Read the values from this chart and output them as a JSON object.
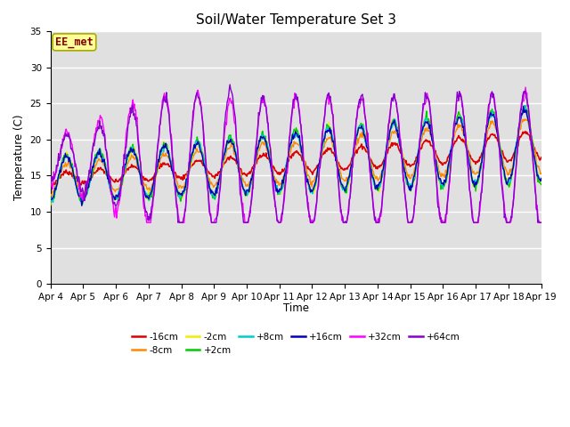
{
  "title": "Soil/Water Temperature Set 3",
  "xlabel": "Time",
  "ylabel": "Temperature (C)",
  "ylim": [
    0,
    35
  ],
  "yticks": [
    0,
    5,
    10,
    15,
    20,
    25,
    30,
    35
  ],
  "x_labels": [
    "Apr 4",
    "Apr 5",
    "Apr 6",
    "Apr 7",
    "Apr 8",
    "Apr 9",
    "Apr 10",
    "Apr 11",
    "Apr 12",
    "Apr 13",
    "Apr 14",
    "Apr 15",
    "Apr 16",
    "Apr 17",
    "Apr 18",
    "Apr 19"
  ],
  "annotation_text": "EE_met",
  "legend_entries": [
    {
      "label": "-16cm",
      "color": "#dd0000"
    },
    {
      "label": "-8cm",
      "color": "#ff8800"
    },
    {
      "label": "-2cm",
      "color": "#eeee00"
    },
    {
      "label": "+2cm",
      "color": "#00cc00"
    },
    {
      "label": "+8cm",
      "color": "#00cccc"
    },
    {
      "label": "+16cm",
      "color": "#0000bb"
    },
    {
      "label": "+32cm",
      "color": "#ff00ff"
    },
    {
      "label": "+64cm",
      "color": "#8800cc"
    }
  ],
  "plot_bg_color": "#e0e0e0",
  "grid_color": "#ffffff"
}
